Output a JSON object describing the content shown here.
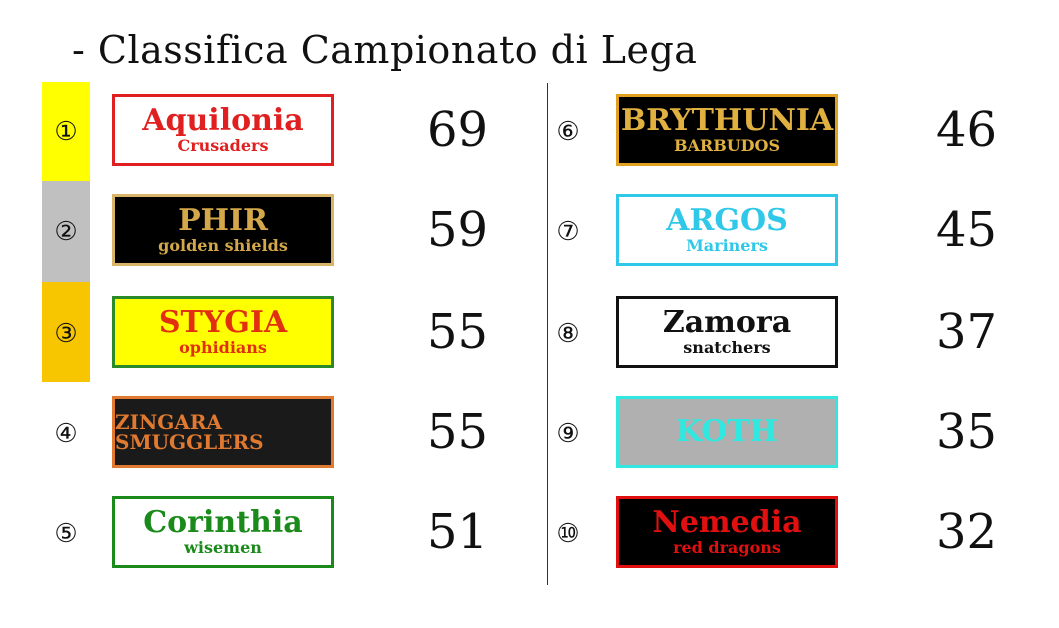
{
  "title": "- Classifica Campionato di Lega",
  "colors": {
    "first": "#ffff00",
    "second": "#c0c0c0",
    "third": "#f7c600"
  },
  "left": [
    {
      "rank": "①",
      "team": "Aquilonia",
      "sub": "Crusaders",
      "score": "69",
      "bg": "#ffffff",
      "fg": "#e02020",
      "border": "#e02020"
    },
    {
      "rank": "②",
      "team": "PHIR",
      "sub": "golden shields",
      "score": "59",
      "bg": "#000000",
      "fg": "#d4a84a",
      "border": "#d9b56a"
    },
    {
      "rank": "③",
      "team": "STYGIA",
      "sub": "ophidians",
      "score": "55",
      "bg": "#ffff00",
      "fg": "#e03010",
      "border": "#2a8a2a"
    },
    {
      "rank": "④",
      "team": "ZINGARA SMUGGLERS",
      "sub": "",
      "score": "55",
      "bg": "#1a1a1a",
      "fg": "#e07a30",
      "border": "#e07a30"
    },
    {
      "rank": "⑤",
      "team": "Corinthia",
      "sub": "wisemen",
      "score": "51",
      "bg": "#ffffff",
      "fg": "#1a8a1a",
      "border": "#1a8a1a"
    }
  ],
  "right": [
    {
      "rank": "⑥",
      "team": "BRYTHUNIA",
      "sub": "BARBUDOS",
      "score": "46",
      "bg": "#000000",
      "fg": "#e0b040",
      "border": "#e0a020"
    },
    {
      "rank": "⑦",
      "team": "ARGOS",
      "sub": "Mariners",
      "score": "45",
      "bg": "#ffffff",
      "fg": "#30c8e8",
      "border": "#30c8e8"
    },
    {
      "rank": "⑧",
      "team": "Zamora",
      "sub": "snatchers",
      "score": "37",
      "bg": "#ffffff",
      "fg": "#111111",
      "border": "#111111"
    },
    {
      "rank": "⑨",
      "team": "KOTH",
      "sub": "",
      "score": "35",
      "bg": "#b0b0b0",
      "fg": "#30e8e0",
      "border": "#30e8e0"
    },
    {
      "rank": "⑩",
      "team": "Nemedia",
      "sub": "red dragons",
      "score": "32",
      "bg": "#000000",
      "fg": "#e01010",
      "border": "#e01010"
    }
  ]
}
